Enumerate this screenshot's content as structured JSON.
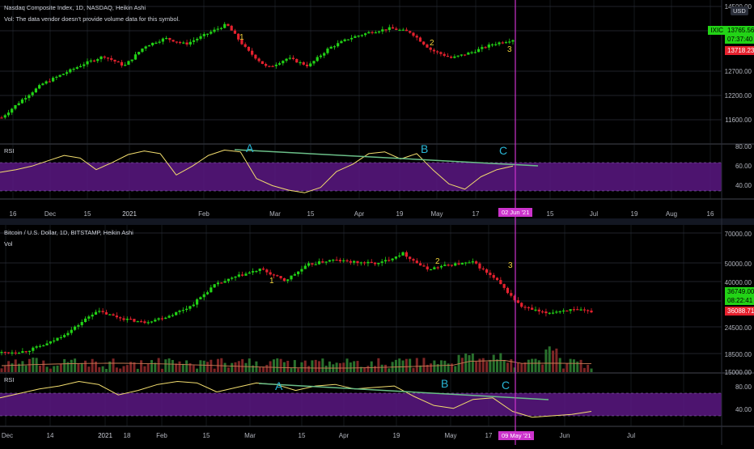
{
  "colors": {
    "background": "#000000",
    "up": "#22d316",
    "down": "#e5212e",
    "rsi_line": "#f2dd6e",
    "rsi_band": "#5a1882",
    "trend_line": "#6bbf88",
    "label_yellow": "#f2d43a",
    "label_cyan": "#29b6d6",
    "cursor": "#cc33cc",
    "grid": "#2a2e39"
  },
  "top_chart": {
    "title": "Nasdaq Composite Index, 1D, NASDAQ, Heikin Ashi",
    "subtitle": "Vol: The data vendor doesn't provide volume data for this symbol.",
    "currency": "USD",
    "y_ticks": [
      "14500.00",
      "13800.00",
      "13200.00",
      "12700.00",
      "12200.00",
      "11600.00"
    ],
    "ixic_tag": "IXIC",
    "last_price": "13765.56",
    "countdown": "07:37:40",
    "red_price": "13718.23",
    "wave_labels": [
      "1",
      "2",
      "3"
    ],
    "rsi_title": "RSI",
    "rsi_ticks": [
      "80.00",
      "60.00",
      "40.00"
    ],
    "rsi_labels": [
      "A",
      "B",
      "C"
    ],
    "x_ticks": [
      "16",
      "Dec",
      "15",
      "2021",
      "Feb",
      "Mar",
      "15",
      "Apr",
      "19",
      "May",
      "17",
      "15",
      "Jul",
      "19",
      "Aug",
      "16"
    ],
    "cursor_date": "02 Jun '21"
  },
  "bottom_chart": {
    "title": "Bitcoin / U.S. Dollar, 1D, BITSTAMP, Heikin Ashi",
    "subtitle": "Vol",
    "y_ticks": [
      "70000.00",
      "50000.00",
      "40000.00",
      "30000.00",
      "24500.00",
      "18500.00",
      "15000.00"
    ],
    "last_price": "36749.00",
    "countdown": "08:22:41",
    "red_price": "36088.71",
    "wave_labels": [
      "1",
      "2",
      "3"
    ],
    "rsi_title": "RSI",
    "rsi_ticks": [
      "80.00",
      "40.00"
    ],
    "rsi_labels": [
      "A",
      "B",
      "C"
    ],
    "x_ticks": [
      "Dec",
      "14",
      "2021",
      "18",
      "Feb",
      "15",
      "Mar",
      "15",
      "Apr",
      "19",
      "May",
      "17",
      "Jun",
      "Jul"
    ],
    "cursor_date": "09 May '21"
  },
  "chart_data": [
    {
      "type": "candlestick",
      "title": "Nasdaq Composite Index, 1D, NASDAQ, Heikin Ashi",
      "x_range": [
        "Nov 2020",
        "Jun 2021"
      ],
      "close_path": [
        11800,
        12250,
        12650,
        12900,
        13150,
        13350,
        13100,
        13600,
        13800,
        13650,
        13900,
        14150,
        13500,
        13050,
        13300,
        13100,
        13550,
        13800,
        13950,
        14050,
        13950,
        13500,
        13300,
        13450,
        13650,
        13765
      ],
      "wave_labels": [
        "1",
        "2",
        "3"
      ]
    },
    {
      "type": "line",
      "title": "RSI",
      "ylim": [
        25,
        85
      ],
      "band": [
        30,
        70
      ],
      "values": [
        55,
        58,
        62,
        68,
        74,
        71,
        58,
        66,
        75,
        79,
        76,
        52,
        62,
        74,
        80,
        78,
        48,
        40,
        35,
        32,
        38,
        56,
        64,
        76,
        78,
        70,
        76,
        58,
        42,
        36,
        50,
        58,
        62
      ],
      "divergence_labels": [
        "A",
        "B",
        "C"
      ]
    },
    {
      "type": "candlestick",
      "title": "Bitcoin / U.S. Dollar, 1D, BITSTAMP, Heikin Ashi",
      "x_range": [
        "Dec 2020",
        "Jun 2021"
      ],
      "close_path": [
        19000,
        19500,
        23000,
        29000,
        37000,
        34000,
        32000,
        34500,
        39000,
        48000,
        52000,
        55000,
        50000,
        57000,
        59000,
        58000,
        57500,
        62000,
        55000,
        57000,
        58000,
        50000,
        39000,
        36000,
        37500,
        36749
      ],
      "wave_labels": [
        "1",
        "2",
        "3"
      ]
    },
    {
      "type": "line",
      "title": "RSI",
      "ylim": [
        25,
        90
      ],
      "band": [
        30,
        70
      ],
      "values": [
        62,
        68,
        74,
        78,
        84,
        80,
        66,
        72,
        80,
        84,
        82,
        70,
        76,
        82,
        80,
        72,
        78,
        80,
        74,
        76,
        78,
        64,
        52,
        48,
        60,
        62,
        44,
        36,
        38,
        40,
        44
      ],
      "divergence_labels": [
        "A",
        "B",
        "C"
      ]
    }
  ]
}
